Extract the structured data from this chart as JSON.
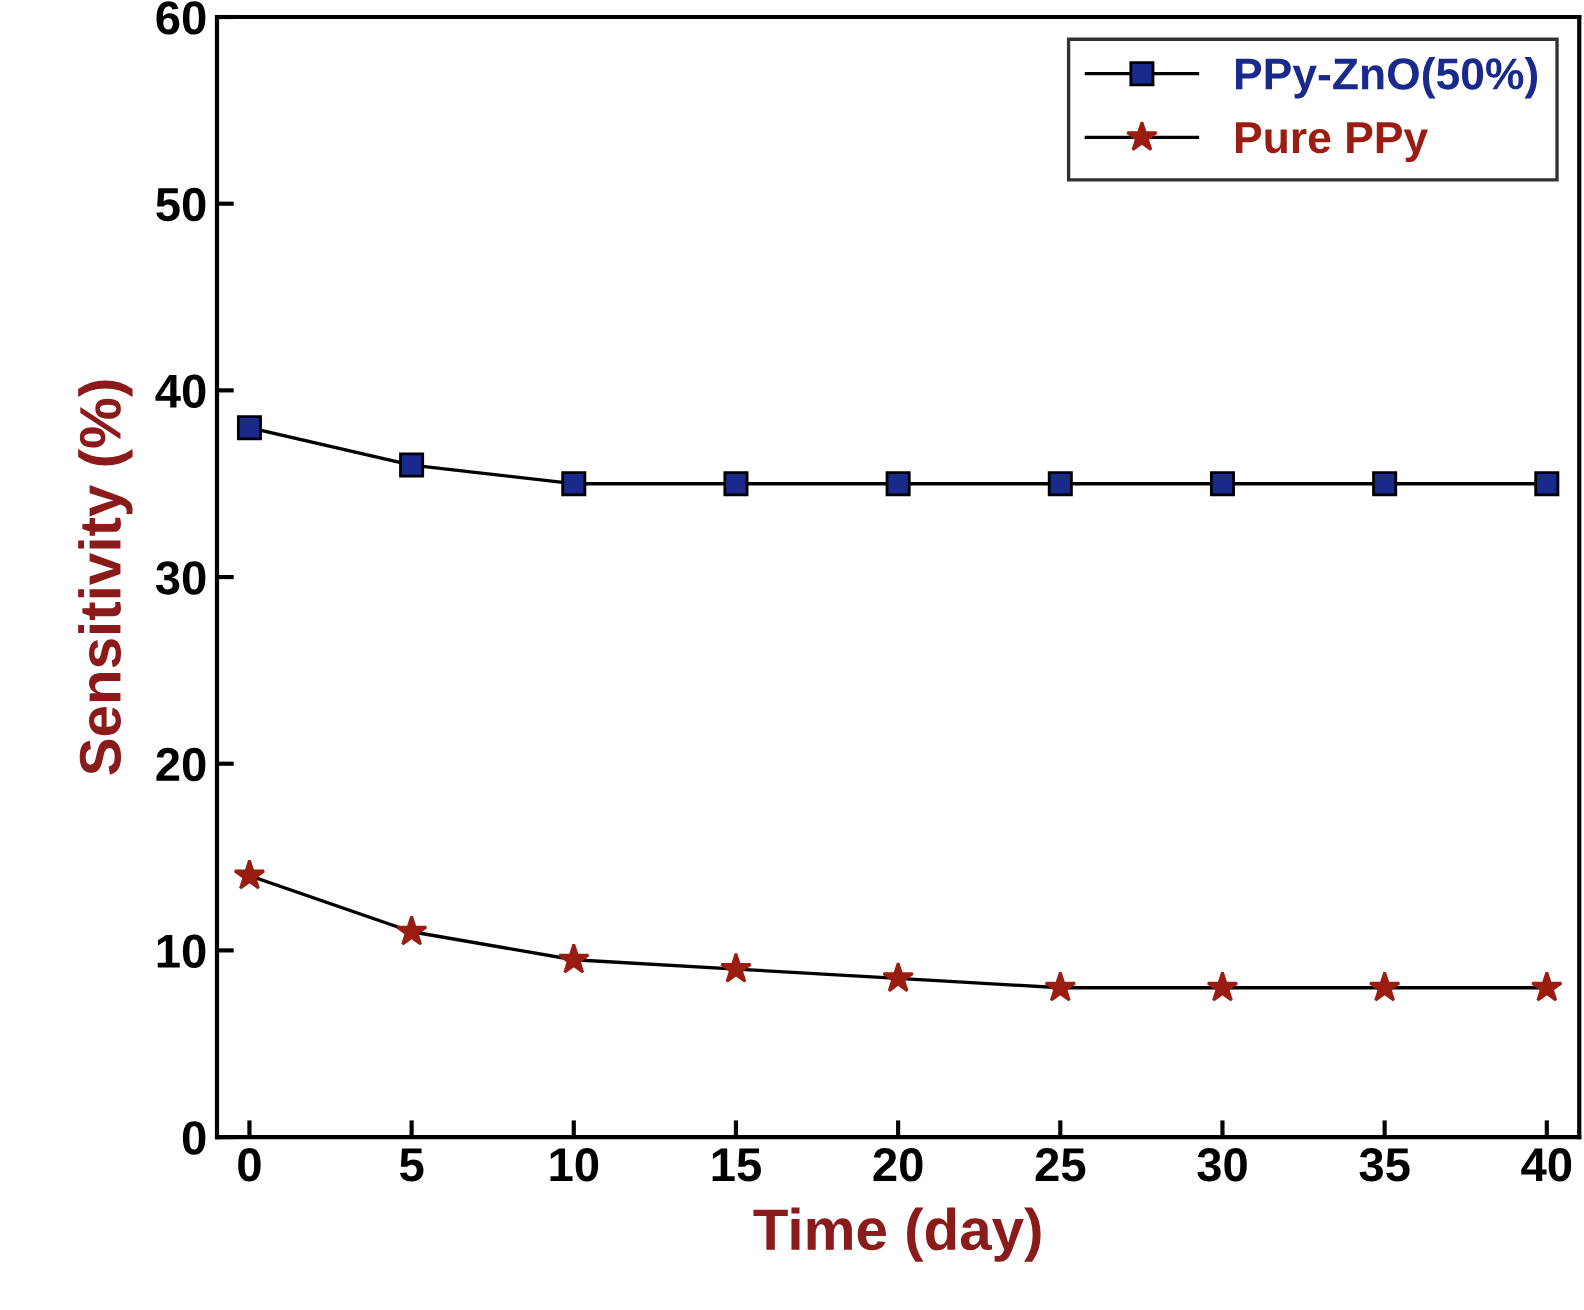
{
  "chart_data": {
    "type": "line",
    "xlabel": "Time (day)",
    "ylabel": "Sensitivity (%)",
    "x": [
      0,
      5,
      10,
      15,
      20,
      25,
      30,
      35,
      40
    ],
    "series": [
      {
        "name": "PPy-ZnO(50%)",
        "color": "#1a2a8c",
        "marker": "square",
        "values": [
          38,
          36,
          35,
          35,
          35,
          35,
          35,
          35,
          35
        ]
      },
      {
        "name": "Pure PPy",
        "color": "#9b1c10",
        "marker": "star",
        "values": [
          14,
          11,
          9.5,
          9,
          8.5,
          8,
          8,
          8,
          8
        ]
      }
    ],
    "xlim": [
      -1,
      41
    ],
    "xticks": [
      0,
      5,
      10,
      15,
      20,
      25,
      30,
      35,
      40
    ],
    "ylim": [
      0,
      60
    ],
    "yticks": [
      0,
      10,
      20,
      30,
      40,
      50,
      60
    ],
    "grid": false,
    "legend": "top right",
    "line_style": "solid"
  }
}
